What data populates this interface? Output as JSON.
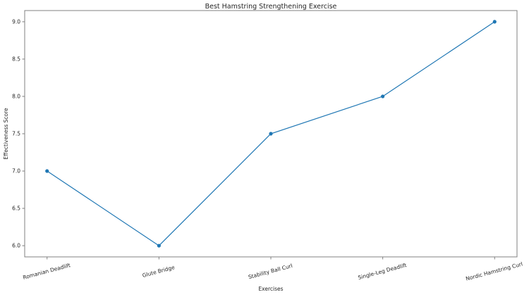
{
  "chart_data": {
    "type": "line",
    "title": "Best Hamstring Strengthening Exercise",
    "xlabel": "Exercises",
    "ylabel": "Effectiveness Score",
    "categories": [
      "Romanian Deadlift",
      "Glute Bridge",
      "Stability Ball Curl",
      "Single-Leg Deadlift",
      "Nordic Hamstring Curl"
    ],
    "values": [
      7.0,
      6.0,
      7.5,
      8.0,
      9.0
    ],
    "yticks": [
      6.0,
      6.5,
      7.0,
      7.5,
      8.0,
      8.5,
      9.0
    ],
    "ylim": [
      5.85,
      9.15
    ],
    "x_tick_rotation_deg": 15,
    "line_color": "#1f77b4",
    "marker": "circle",
    "marker_color": "#1f77b4",
    "grid": false,
    "legend": "none",
    "frame_color": "#808080",
    "text_color": "#262626",
    "background_color": "#ffffff"
  }
}
